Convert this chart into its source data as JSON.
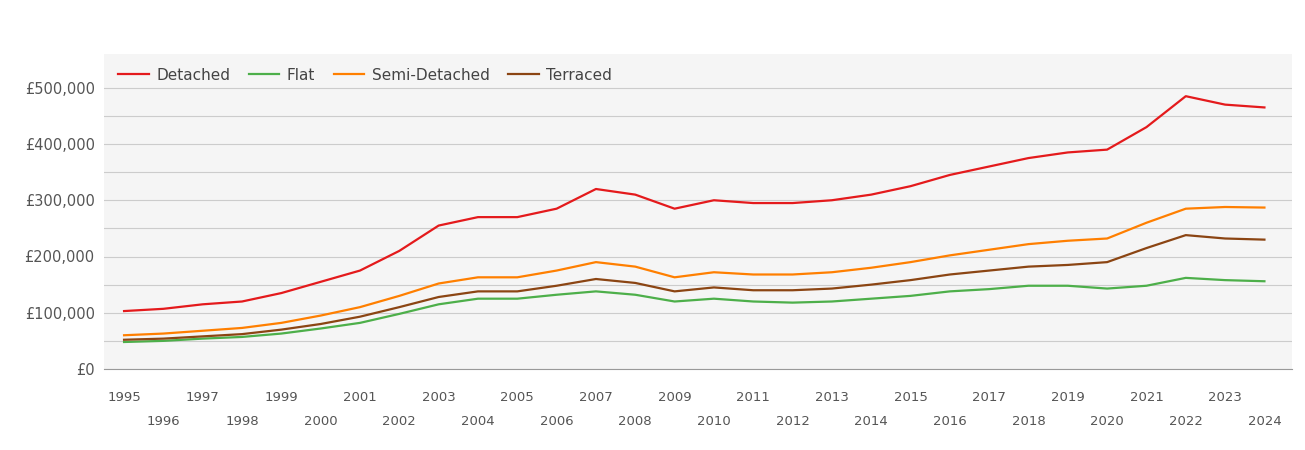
{
  "series": {
    "Detached": {
      "color": "#e41a1c",
      "data": {
        "1995": 103000,
        "1996": 107000,
        "1997": 115000,
        "1998": 120000,
        "1999": 135000,
        "2000": 155000,
        "2001": 175000,
        "2002": 210000,
        "2003": 255000,
        "2004": 270000,
        "2005": 270000,
        "2006": 285000,
        "2007": 320000,
        "2008": 310000,
        "2009": 285000,
        "2010": 300000,
        "2011": 295000,
        "2012": 295000,
        "2013": 300000,
        "2014": 310000,
        "2015": 325000,
        "2016": 345000,
        "2017": 360000,
        "2018": 375000,
        "2019": 385000,
        "2020": 390000,
        "2021": 430000,
        "2022": 485000,
        "2023": 470000,
        "2024": 465000
      }
    },
    "Flat": {
      "color": "#4daf4a",
      "data": {
        "1995": 48000,
        "1996": 50000,
        "1997": 54000,
        "1998": 57000,
        "1999": 63000,
        "2000": 72000,
        "2001": 82000,
        "2002": 98000,
        "2003": 115000,
        "2004": 125000,
        "2005": 125000,
        "2006": 132000,
        "2007": 138000,
        "2008": 132000,
        "2009": 120000,
        "2010": 125000,
        "2011": 120000,
        "2012": 118000,
        "2013": 120000,
        "2014": 125000,
        "2015": 130000,
        "2016": 138000,
        "2017": 142000,
        "2018": 148000,
        "2019": 148000,
        "2020": 143000,
        "2021": 148000,
        "2022": 162000,
        "2023": 158000,
        "2024": 156000
      }
    },
    "Semi-Detached": {
      "color": "#ff7f00",
      "data": {
        "1995": 60000,
        "1996": 63000,
        "1997": 68000,
        "1998": 73000,
        "1999": 82000,
        "2000": 95000,
        "2001": 110000,
        "2002": 130000,
        "2003": 152000,
        "2004": 163000,
        "2005": 163000,
        "2006": 175000,
        "2007": 190000,
        "2008": 182000,
        "2009": 163000,
        "2010": 172000,
        "2011": 168000,
        "2012": 168000,
        "2013": 172000,
        "2014": 180000,
        "2015": 190000,
        "2016": 202000,
        "2017": 212000,
        "2018": 222000,
        "2019": 228000,
        "2020": 232000,
        "2021": 260000,
        "2022": 285000,
        "2023": 288000,
        "2024": 287000
      }
    },
    "Terraced": {
      "color": "#8B4513",
      "data": {
        "1995": 52000,
        "1996": 54000,
        "1997": 58000,
        "1998": 62000,
        "1999": 70000,
        "2000": 80000,
        "2001": 93000,
        "2002": 110000,
        "2003": 128000,
        "2004": 138000,
        "2005": 138000,
        "2006": 148000,
        "2007": 160000,
        "2008": 153000,
        "2009": 138000,
        "2010": 145000,
        "2011": 140000,
        "2012": 140000,
        "2013": 143000,
        "2014": 150000,
        "2015": 158000,
        "2016": 168000,
        "2017": 175000,
        "2018": 182000,
        "2019": 185000,
        "2020": 190000,
        "2021": 215000,
        "2022": 238000,
        "2023": 232000,
        "2024": 230000
      }
    }
  },
  "ylim": [
    0,
    560000
  ],
  "yticks": [
    0,
    100000,
    200000,
    300000,
    400000,
    500000
  ],
  "ytick_labels": [
    "£0",
    "£100,000",
    "£200,000",
    "£300,000",
    "£400,000",
    "£500,000"
  ],
  "minor_yticks": [
    50000,
    150000,
    250000,
    350000,
    450000
  ],
  "background_color": "#ffffff",
  "plot_bg_color": "#f5f5f5",
  "grid_color": "#cccccc",
  "line_width": 1.6
}
